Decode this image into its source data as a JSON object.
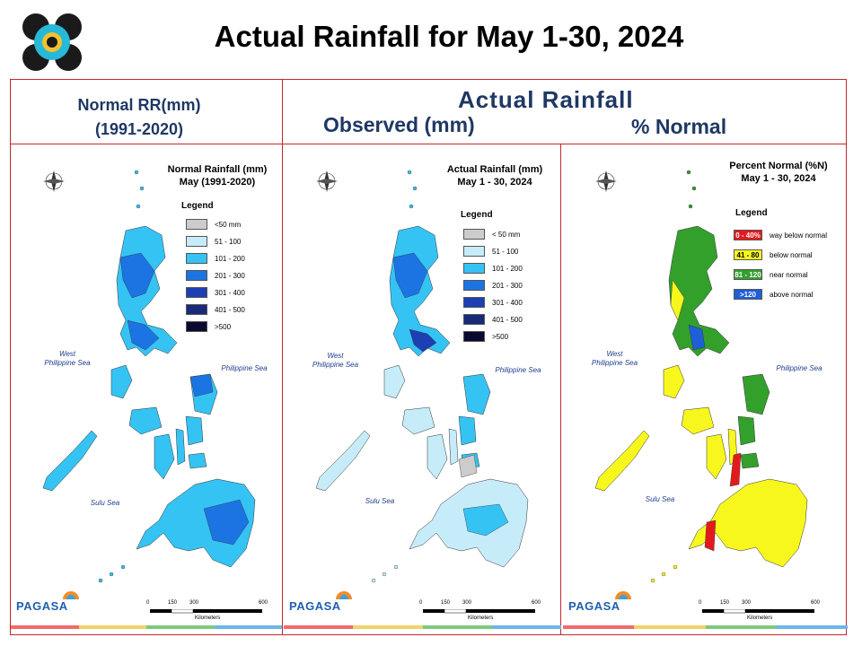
{
  "title": "Actual Rainfall for May 1-30, 2024",
  "headers": {
    "normal_line1": "Normal RR(mm)",
    "normal_line2": "(1991-2020)",
    "actual": "Actual Rainfall",
    "observed": "Observed (mm)",
    "percent": "% Normal"
  },
  "maps": [
    {
      "title_line1": "Normal Rainfall (mm)",
      "title_line2": "May (1991-2020)",
      "legend_title": "Legend",
      "legend": [
        {
          "label": "<50 mm",
          "color": "#cccccc"
        },
        {
          "label": "51 - 100",
          "color": "#c7ecf9"
        },
        {
          "label": "101 - 200",
          "color": "#35c3f4"
        },
        {
          "label": "201 - 300",
          "color": "#1c74e3"
        },
        {
          "label": "301 - 400",
          "color": "#1d3fb4"
        },
        {
          "label": "401 - 500",
          "color": "#182a78"
        },
        {
          "label": ">500",
          "color": "#0a0a30"
        }
      ]
    },
    {
      "title_line1": "Actual Rainfall (mm)",
      "title_line2": "May 1 - 30, 2024",
      "legend_title": "Legend",
      "legend": [
        {
          "label": "< 50 mm",
          "color": "#cccccc"
        },
        {
          "label": "51 - 100",
          "color": "#c7ecf9"
        },
        {
          "label": "101 - 200",
          "color": "#35c3f4"
        },
        {
          "label": "201 - 300",
          "color": "#1c74e3"
        },
        {
          "label": "301 - 400",
          "color": "#1d3fb4"
        },
        {
          "label": "401 - 500",
          "color": "#182a78"
        },
        {
          "label": ">500",
          "color": "#0a0a30"
        }
      ]
    },
    {
      "title_line1": "Percent Normal (%N)",
      "title_line2": "May 1 - 30, 2024",
      "legend_title": "Legend",
      "legend": [
        {
          "swatch": "0 - 40%",
          "label": "way below normal",
          "color": "#e31a1c"
        },
        {
          "swatch": "41 - 80",
          "label": "below normal",
          "color": "#f7f71e"
        },
        {
          "swatch": "81 - 120",
          "label": "near normal",
          "color": "#33a02c"
        },
        {
          "swatch": ">120",
          "label": "above normal",
          "color": "#1f5fd6"
        }
      ]
    }
  ],
  "labels": {
    "west_sea_1": "West",
    "west_sea_2": "Philippine Sea",
    "east_sea": "Philippine Sea",
    "sulu": "Sulu Sea",
    "km": "Kilometers",
    "scale_ticks": [
      "0",
      "150",
      "300",
      "600"
    ],
    "agency": "PAGASA"
  }
}
